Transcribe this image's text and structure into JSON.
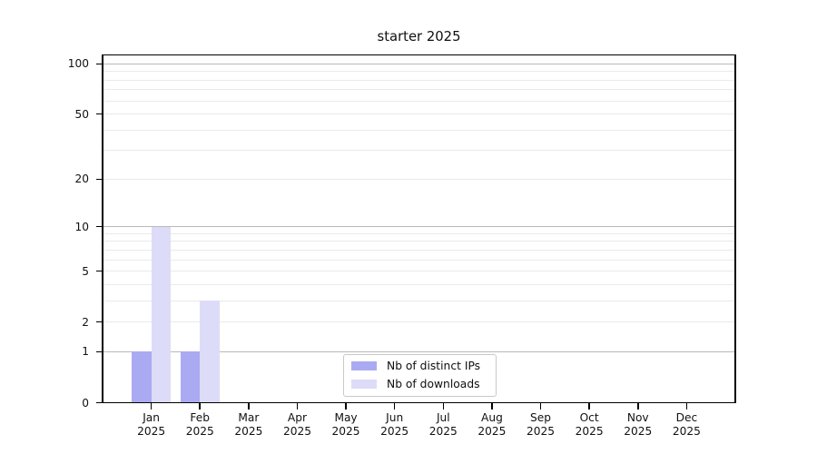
{
  "title": "starter 2025",
  "chart_data": {
    "type": "bar",
    "title": "starter 2025",
    "categories": [
      "Jan 2025",
      "Feb 2025",
      "Mar 2025",
      "Apr 2025",
      "May 2025",
      "Jun 2025",
      "Jul 2025",
      "Aug 2025",
      "Sep 2025",
      "Oct 2025",
      "Nov 2025",
      "Dec 2025"
    ],
    "series": [
      {
        "name": "Nb of distinct IPs",
        "color": "#aaaaf2",
        "values": [
          1,
          1,
          0,
          0,
          0,
          0,
          0,
          0,
          0,
          0,
          0,
          0
        ]
      },
      {
        "name": "Nb of downloads",
        "color": "#dcdcf8",
        "values": [
          10,
          3,
          0,
          0,
          0,
          0,
          0,
          0,
          0,
          0,
          0,
          0
        ]
      }
    ],
    "xlabel": "",
    "ylabel": "",
    "yscale": "log1p",
    "ylim": [
      0,
      113
    ],
    "yticks": [
      0,
      1,
      2,
      5,
      10,
      20,
      50,
      100
    ],
    "yticks_major_grid": [
      1,
      10,
      100
    ],
    "yticks_minor_grid": [
      2,
      3,
      4,
      5,
      6,
      7,
      8,
      9,
      20,
      30,
      40,
      50,
      60,
      70,
      80,
      90
    ],
    "grid": "y",
    "legend_position": "lower center",
    "colors": {
      "background": "#ffffff",
      "axis": "#000000",
      "major_grid": "#b9b9b9",
      "minor_grid": "#eaeaea",
      "text": "#111111"
    }
  }
}
